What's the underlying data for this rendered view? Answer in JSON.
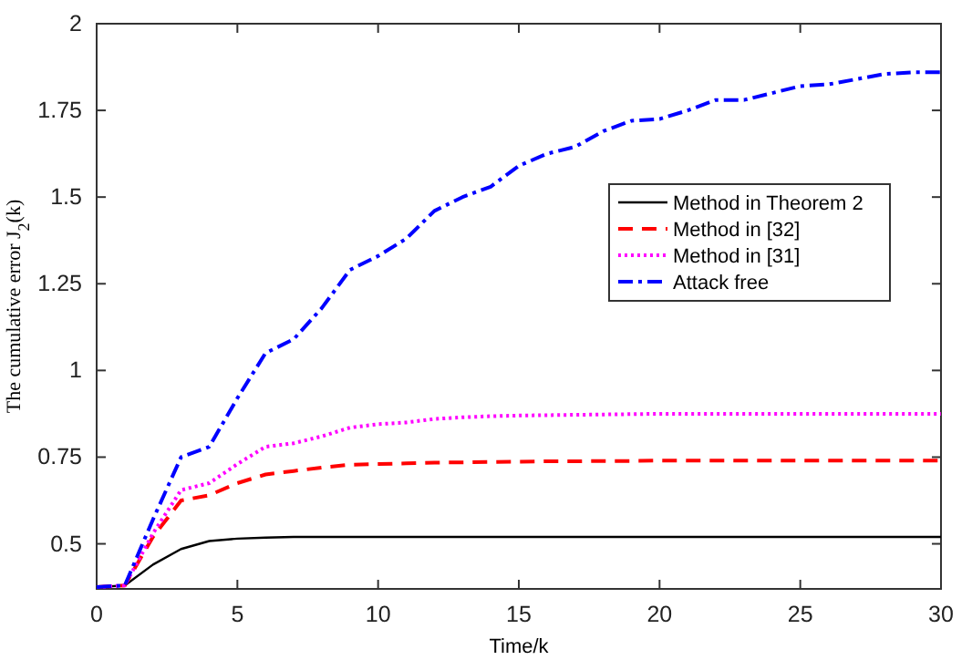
{
  "chart_data": {
    "type": "line",
    "xlabel": "Time/k",
    "ylabel": "The cumulative error J$_{2}$(k)",
    "x": [
      0,
      1,
      2,
      3,
      4,
      5,
      6,
      7,
      8,
      9,
      10,
      11,
      12,
      13,
      14,
      15,
      16,
      17,
      18,
      19,
      20,
      21,
      22,
      23,
      24,
      25,
      26,
      27,
      28,
      29,
      30
    ],
    "xlim": [
      0,
      30
    ],
    "xticks": [
      0,
      5,
      10,
      15,
      20,
      25,
      30
    ],
    "ylim": [
      0.37,
      2
    ],
    "yticks": [
      0.5,
      0.75,
      1,
      1.25,
      1.5,
      1.75,
      2
    ],
    "grid": false,
    "legend": "right",
    "marker": "none",
    "series": [
      {
        "name": "Method in Theorem 2",
        "color": "#000000",
        "line_style": "solid",
        "values": [
          0.375,
          0.38,
          0.44,
          0.485,
          0.508,
          0.515,
          0.518,
          0.52,
          0.52,
          0.52,
          0.52,
          0.52,
          0.52,
          0.52,
          0.52,
          0.52,
          0.52,
          0.52,
          0.52,
          0.52,
          0.52,
          0.52,
          0.52,
          0.52,
          0.52,
          0.52,
          0.52,
          0.52,
          0.52,
          0.52,
          0.52
        ]
      },
      {
        "name": "Method in [32]",
        "color": "#ff0000",
        "line_style": "dashed",
        "values": [
          0.375,
          0.38,
          0.52,
          0.625,
          0.64,
          0.675,
          0.7,
          0.71,
          0.72,
          0.728,
          0.73,
          0.732,
          0.734,
          0.735,
          0.736,
          0.737,
          0.738,
          0.738,
          0.739,
          0.739,
          0.74,
          0.74,
          0.74,
          0.74,
          0.74,
          0.74,
          0.74,
          0.74,
          0.74,
          0.74,
          0.74
        ]
      },
      {
        "name": "Method in [31]",
        "color": "#ff00ff",
        "line_style": "dotted",
        "values": [
          0.375,
          0.38,
          0.53,
          0.655,
          0.675,
          0.73,
          0.78,
          0.79,
          0.81,
          0.835,
          0.845,
          0.85,
          0.86,
          0.865,
          0.868,
          0.87,
          0.871,
          0.872,
          0.873,
          0.874,
          0.875,
          0.875,
          0.875,
          0.875,
          0.875,
          0.875,
          0.875,
          0.875,
          0.875,
          0.875,
          0.875
        ]
      },
      {
        "name": "Attack free",
        "color": "#0000ff",
        "line_style": "dashdot",
        "values": [
          0.375,
          0.38,
          0.57,
          0.75,
          0.78,
          0.92,
          1.05,
          1.09,
          1.18,
          1.29,
          1.33,
          1.38,
          1.46,
          1.5,
          1.53,
          1.59,
          1.625,
          1.645,
          1.69,
          1.72,
          1.725,
          1.75,
          1.78,
          1.78,
          1.8,
          1.82,
          1.825,
          1.84,
          1.855,
          1.86,
          1.86
        ]
      }
    ]
  }
}
